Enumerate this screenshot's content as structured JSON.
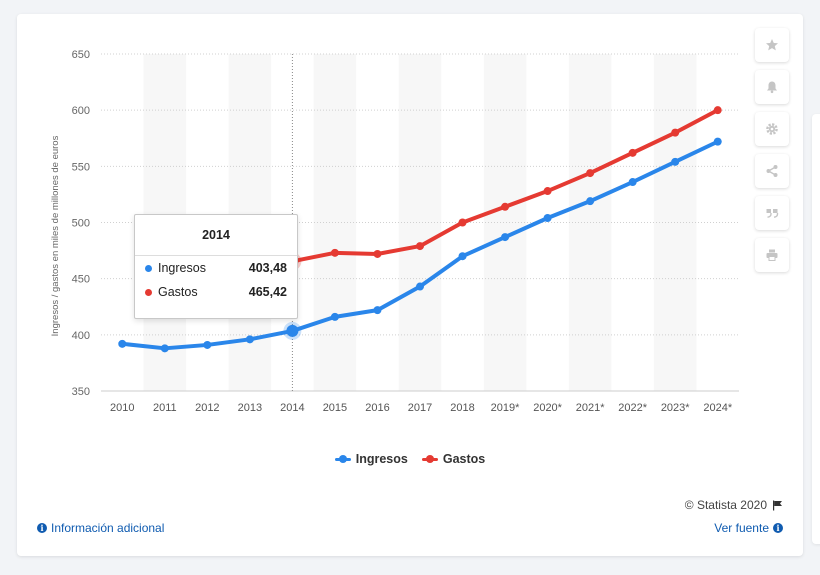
{
  "chart_data": {
    "type": "line",
    "ylabel": "Ingresos / gastos en miles de millones de euros",
    "xlabel": "",
    "ylim": [
      350,
      650
    ],
    "yticks": [
      350,
      400,
      450,
      500,
      550,
      600,
      650
    ],
    "categories": [
      "2010",
      "2011",
      "2012",
      "2013",
      "2014",
      "2015",
      "2016",
      "2017",
      "2018",
      "2019*",
      "2020*",
      "2021*",
      "2022*",
      "2023*",
      "2024*"
    ],
    "series": [
      {
        "name": "Ingresos",
        "color": "#2a86ea",
        "values": [
          392,
          388,
          391,
          396,
          403.48,
          416,
          422,
          443,
          470,
          487,
          504,
          519,
          536,
          554,
          572
        ]
      },
      {
        "name": "Gastos",
        "color": "#e53a32",
        "values": [
          null,
          null,
          null,
          null,
          465.42,
          473,
          472,
          479,
          500,
          514,
          528,
          544,
          562,
          580,
          600
        ]
      }
    ],
    "grid": true,
    "legend_position": "bottom-center",
    "highlighted_category": "2014"
  },
  "tooltip": {
    "title": "2014",
    "rows": [
      {
        "label": "Ingresos",
        "value": "403,48",
        "color": "#2a86ea"
      },
      {
        "label": "Gastos",
        "value": "465,42",
        "color": "#e53a32"
      }
    ]
  },
  "footer": {
    "copyright": "© Statista 2020",
    "info_link": "Información adicional",
    "source_link": "Ver fuente"
  },
  "sidebar": [
    "star-icon",
    "bell-icon",
    "gear-icon",
    "share-icon",
    "quote-icon",
    "print-icon"
  ]
}
